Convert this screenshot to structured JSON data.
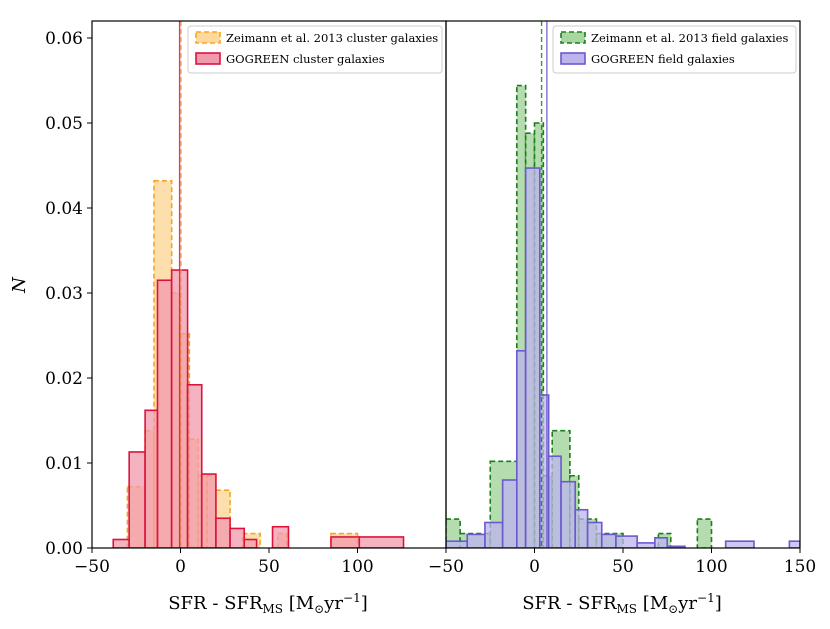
{
  "chart_data": [
    {
      "type": "histogram",
      "panel": "left",
      "xlabel_main": "SFR - SFR",
      "xlabel_sub": "MS",
      "xlabel_unit_pre": " [M",
      "xlabel_unit_sym": "⊙",
      "xlabel_unit_mid": "yr",
      "xlabel_unit_exp": "−1",
      "xlabel_unit_post": "]",
      "ylabel": "N",
      "xlim": [
        -50,
        150
      ],
      "ylim": [
        0,
        0.062
      ],
      "xticks": [
        -50,
        0,
        50,
        100
      ],
      "xtick_labels": [
        "−50",
        "0",
        "50",
        "100"
      ],
      "yticks": [
        0,
        0.01,
        0.02,
        0.03,
        0.04,
        0.05,
        0.06
      ],
      "ytick_labels": [
        "0.00",
        "0.01",
        "0.02",
        "0.03",
        "0.04",
        "0.05",
        "0.06"
      ],
      "legend_position": "top-right",
      "series": [
        {
          "name": "Zeimann et al. 2013 cluster galaxies",
          "style": "dashed",
          "edge_color": "#f5a623",
          "fill_color": "#fdd9a0",
          "bins": [
            [
              -30,
              -20,
              0.0072
            ],
            [
              -20,
              -15,
              0.0138
            ],
            [
              -15,
              -5,
              0.0432
            ],
            [
              -5,
              0,
              0.03
            ],
            [
              0,
              5,
              0.0252
            ],
            [
              5,
              10,
              0.0128
            ],
            [
              10,
              15,
              0.0085
            ],
            [
              15,
              20,
              0.0085
            ],
            [
              20,
              28,
              0.0068
            ],
            [
              35,
              45,
              0.0017
            ],
            [
              55,
              60,
              0.0017
            ],
            [
              85,
              100,
              0.0017
            ]
          ],
          "median_line": 0.3
        },
        {
          "name": "GOGREEN cluster galaxies",
          "style": "solid",
          "edge_color": "#dc143c",
          "fill_color": "#f29aac",
          "bins": [
            [
              -38,
              -29,
              0.001
            ],
            [
              -29,
              -20,
              0.0113
            ],
            [
              -20,
              -13,
              0.0162
            ],
            [
              -13,
              -5,
              0.0315
            ],
            [
              -5,
              4,
              0.0327
            ],
            [
              4,
              12,
              0.0192
            ],
            [
              12,
              20,
              0.0087
            ],
            [
              20,
              28,
              0.0035
            ],
            [
              28,
              36,
              0.0023
            ],
            [
              36,
              43,
              0.001
            ],
            [
              52,
              61,
              0.0025
            ],
            [
              85,
              101,
              0.0013
            ],
            [
              101,
              126,
              0.0013
            ]
          ],
          "median_line": -0.5
        }
      ]
    },
    {
      "type": "histogram",
      "panel": "right",
      "xlabel_main": "SFR - SFR",
      "xlabel_sub": "MS",
      "xlabel_unit_pre": " [M",
      "xlabel_unit_sym": "⊙",
      "xlabel_unit_mid": "yr",
      "xlabel_unit_exp": "−1",
      "xlabel_unit_post": "]",
      "xlim": [
        -50,
        150
      ],
      "ylim": [
        0,
        0.062
      ],
      "xticks": [
        -50,
        0,
        50,
        100,
        150
      ],
      "xtick_labels": [
        "−50",
        "0",
        "50",
        "100",
        "150"
      ],
      "legend_position": "top-right",
      "series": [
        {
          "name": "Zeimann et al. 2013 field galaxies",
          "style": "dashed",
          "edge_color": "#1a7f1a",
          "fill_color": "#a7d6a0",
          "bins": [
            [
              -50,
              -42,
              0.0034
            ],
            [
              -42,
              -25,
              0.0017
            ],
            [
              -25,
              -10,
              0.0102
            ],
            [
              -10,
              -5,
              0.0544
            ],
            [
              -5,
              0,
              0.0488
            ],
            [
              0,
              5,
              0.05
            ],
            [
              5,
              10,
              0.0085
            ],
            [
              10,
              20,
              0.0138
            ],
            [
              20,
              25,
              0.0085
            ],
            [
              25,
              35,
              0.0034
            ],
            [
              35,
              50,
              0.0017
            ],
            [
              70,
              77,
              0.0017
            ],
            [
              92,
              100,
              0.0034
            ]
          ],
          "median_line": 4
        },
        {
          "name": "GOGREEN field galaxies",
          "style": "solid",
          "edge_color": "#6a5acd",
          "fill_color": "#bdb4ee",
          "bins": [
            [
              -50,
              -38,
              0.0008
            ],
            [
              -38,
              -28,
              0.0016
            ],
            [
              -28,
              -18,
              0.003
            ],
            [
              -18,
              -10,
              0.008
            ],
            [
              -10,
              -5,
              0.0232
            ],
            [
              -5,
              3,
              0.0447
            ],
            [
              3,
              8,
              0.018
            ],
            [
              8,
              15,
              0.0108
            ],
            [
              15,
              23,
              0.0078
            ],
            [
              23,
              30,
              0.0045
            ],
            [
              30,
              38,
              0.003
            ],
            [
              38,
              46,
              0.0016
            ],
            [
              46,
              58,
              0.0014
            ],
            [
              58,
              68,
              0.0006
            ],
            [
              68,
              75,
              0.0012
            ],
            [
              75,
              85,
              0.0002
            ],
            [
              108,
              124,
              0.0008
            ],
            [
              144,
              150,
              0.0008
            ]
          ],
          "median_line": 7
        }
      ]
    }
  ]
}
